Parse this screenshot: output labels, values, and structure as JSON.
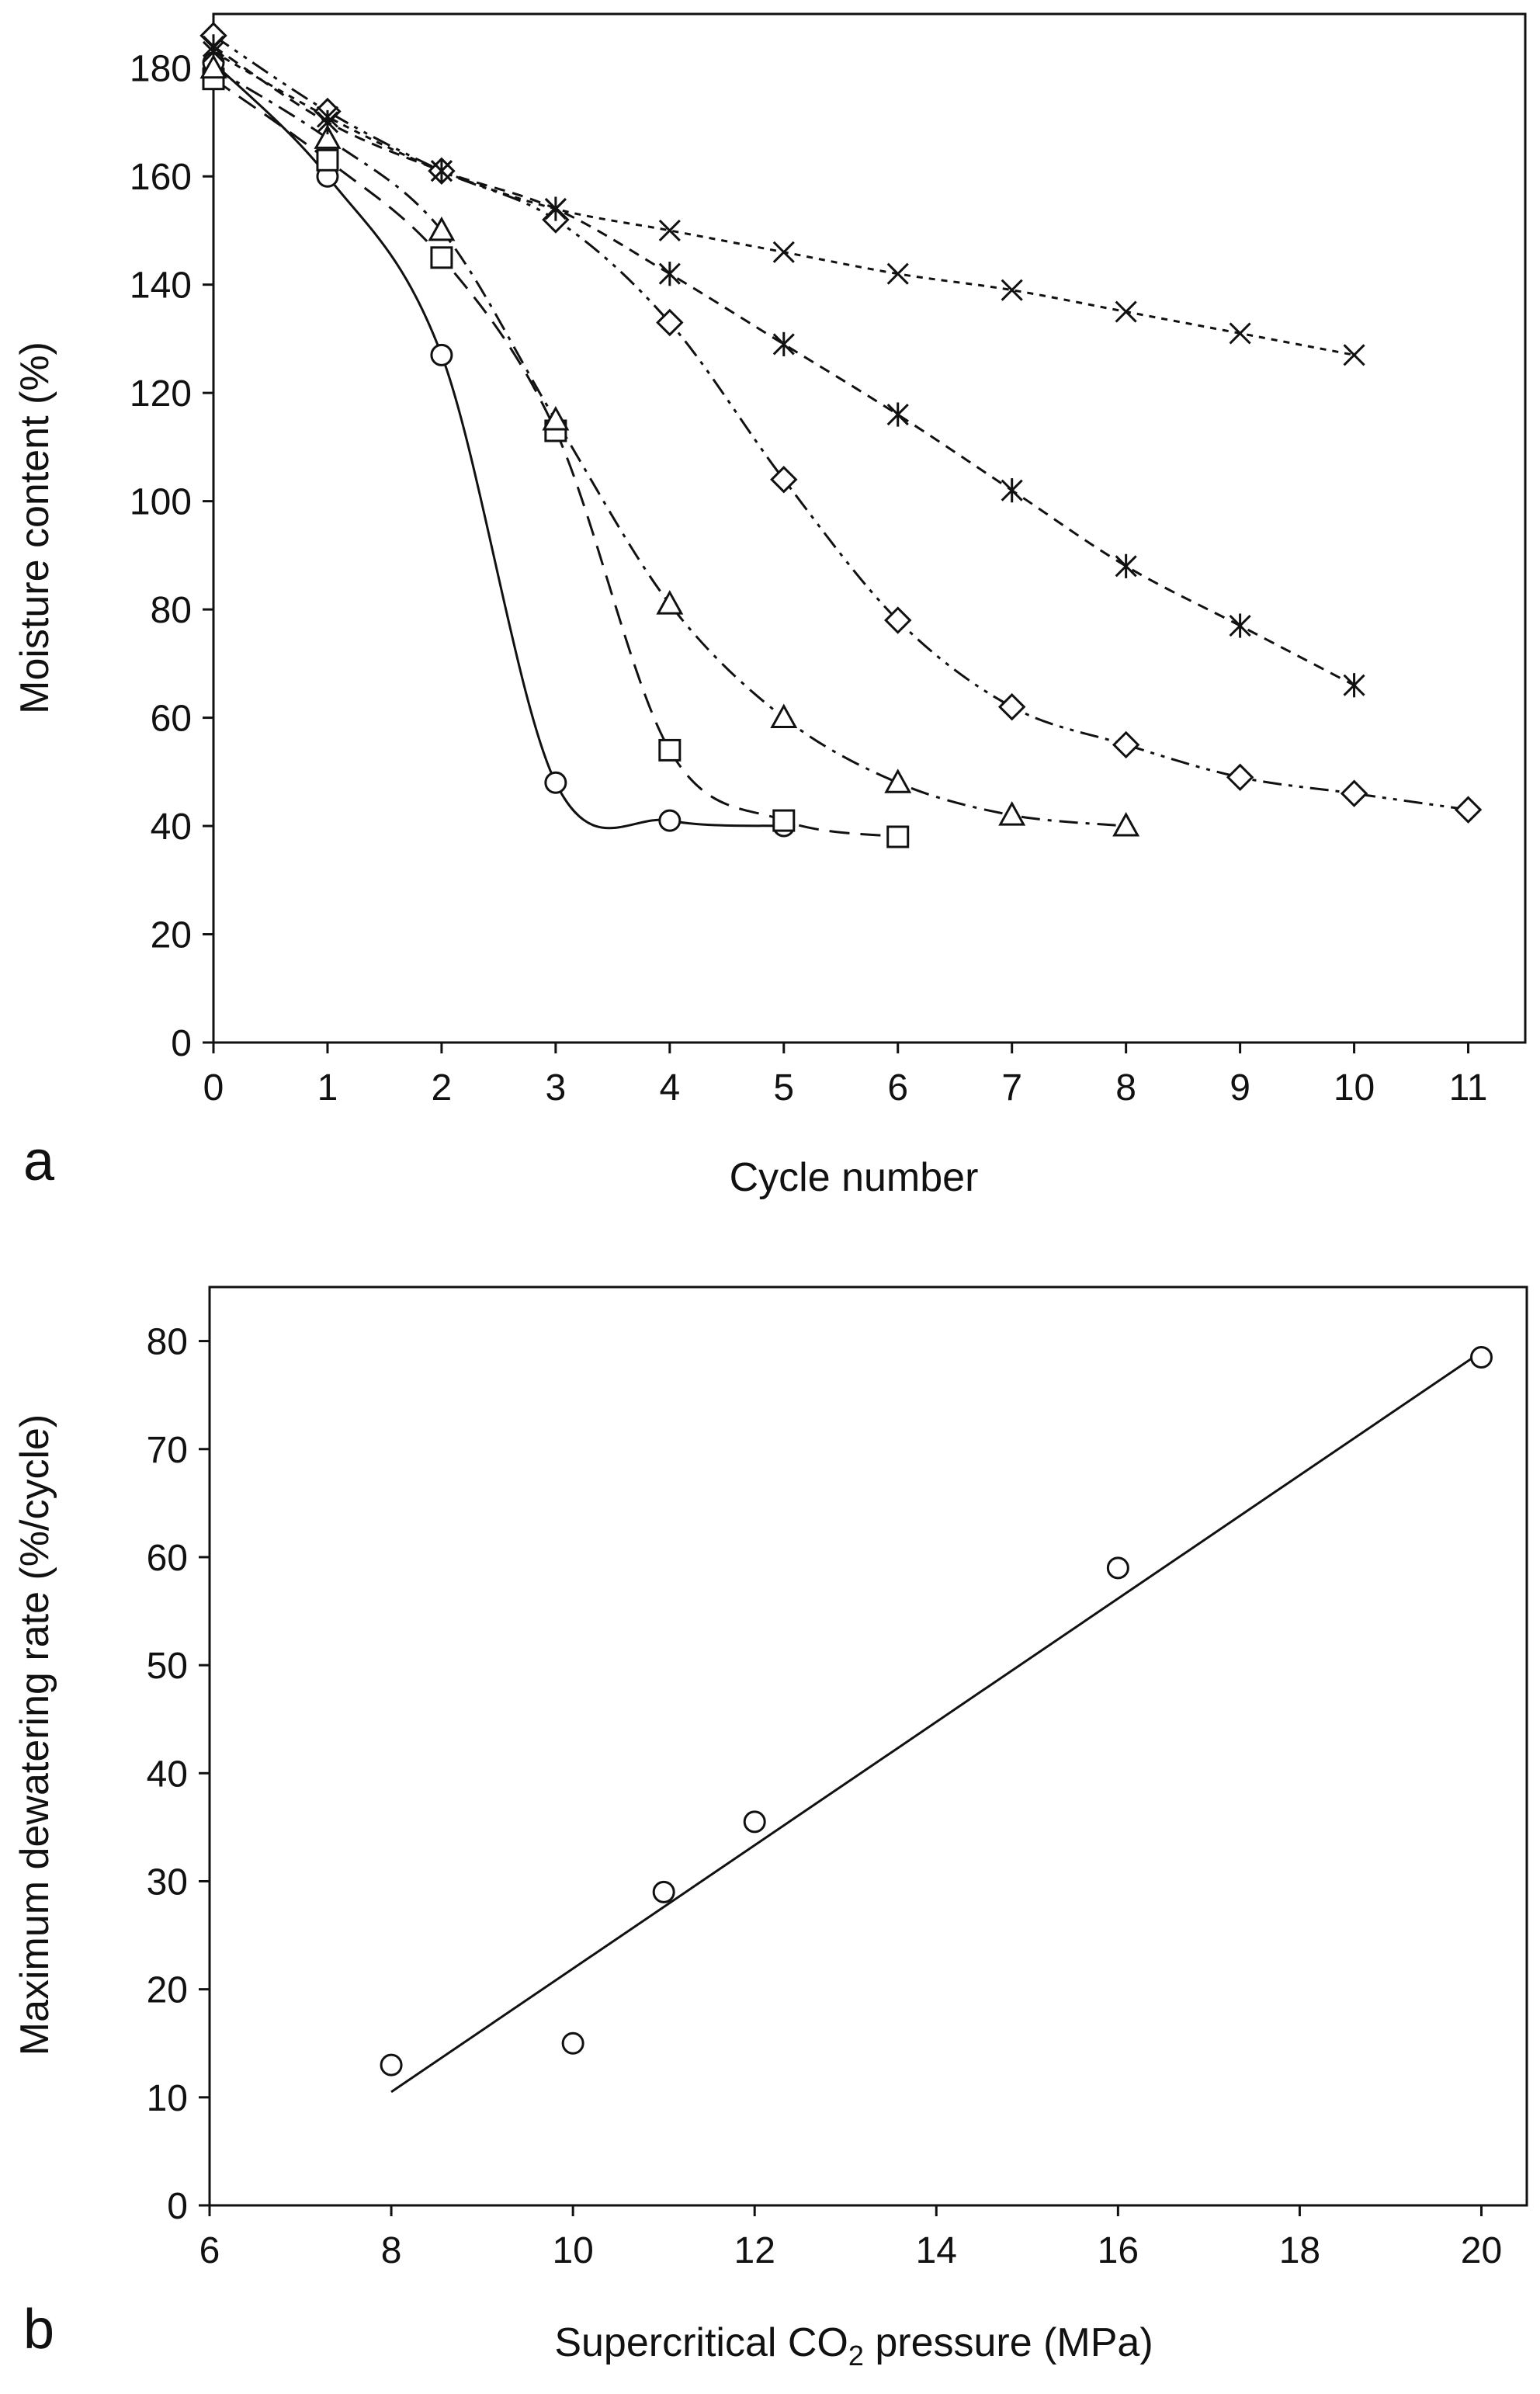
{
  "chart_data": [
    {
      "type": "line",
      "panel_label": "a",
      "xlabel": "Cycle number",
      "ylabel": "Moisture content (%)",
      "xlim": [
        0,
        11.5
      ],
      "ylim": [
        0,
        190
      ],
      "xticks": [
        "0",
        "1",
        "2",
        "3",
        "4",
        "5",
        "6",
        "7",
        "8",
        "9",
        "10",
        "11"
      ],
      "yticks": [
        "0",
        "20",
        "40",
        "60",
        "80",
        "100",
        "120",
        "140",
        "160",
        "180"
      ],
      "series": [
        {
          "name": "circle",
          "marker": "circle",
          "dash": "solid",
          "x": [
            0,
            1,
            2,
            3,
            4,
            5
          ],
          "y": [
            181,
            160,
            127,
            48,
            41,
            40
          ]
        },
        {
          "name": "square",
          "marker": "square",
          "dash": "long-dash",
          "x": [
            0,
            1,
            2,
            3,
            4,
            5,
            6
          ],
          "y": [
            178,
            163,
            145,
            113,
            54,
            41,
            38
          ]
        },
        {
          "name": "triangle",
          "marker": "triangle",
          "dash": "dash-dot",
          "x": [
            0,
            1,
            2,
            3,
            4,
            5,
            6,
            7,
            8
          ],
          "y": [
            180,
            167,
            150,
            115,
            81,
            60,
            48,
            42,
            40
          ]
        },
        {
          "name": "diamond",
          "marker": "diamond",
          "dash": "dash-dot-dot",
          "x": [
            0,
            1,
            2,
            3,
            4,
            5,
            6,
            7,
            8,
            9,
            10,
            11
          ],
          "y": [
            186,
            172,
            161,
            152,
            133,
            104,
            78,
            62,
            55,
            49,
            46,
            43
          ]
        },
        {
          "name": "asterisk",
          "marker": "asterisk",
          "dash": "dash",
          "x": [
            0,
            1,
            2,
            3,
            4,
            5,
            6,
            7,
            8,
            9,
            10
          ],
          "y": [
            184,
            170,
            161,
            154,
            142,
            129,
            116,
            102,
            88,
            77,
            66
          ]
        },
        {
          "name": "cross",
          "marker": "cross",
          "dash": "dotted",
          "x": [
            0,
            1,
            2,
            3,
            4,
            5,
            6,
            7,
            8,
            9,
            10
          ],
          "y": [
            183,
            171,
            161,
            154,
            150,
            146,
            142,
            139,
            135,
            131,
            127
          ]
        }
      ]
    },
    {
      "type": "scatter",
      "panel_label": "b",
      "xlabel_main": "Supercritical CO",
      "xlabel_sub": "2",
      "xlabel_tail": " pressure  (MPa)",
      "ylabel": "Maximum dewatering rate  (%/cycle)",
      "xlim": [
        6,
        20.5
      ],
      "ylim": [
        0,
        85
      ],
      "xticks": [
        "6",
        "8",
        "10",
        "12",
        "14",
        "16",
        "18",
        "20"
      ],
      "yticks": [
        "0",
        "10",
        "20",
        "30",
        "40",
        "50",
        "60",
        "70",
        "80"
      ],
      "points": {
        "x": [
          8,
          10,
          11,
          12,
          16,
          20
        ],
        "y": [
          13,
          15,
          29,
          35.5,
          59,
          78.5
        ]
      },
      "fit_line": {
        "x": [
          8,
          20
        ],
        "y": [
          10.5,
          79
        ]
      }
    }
  ]
}
